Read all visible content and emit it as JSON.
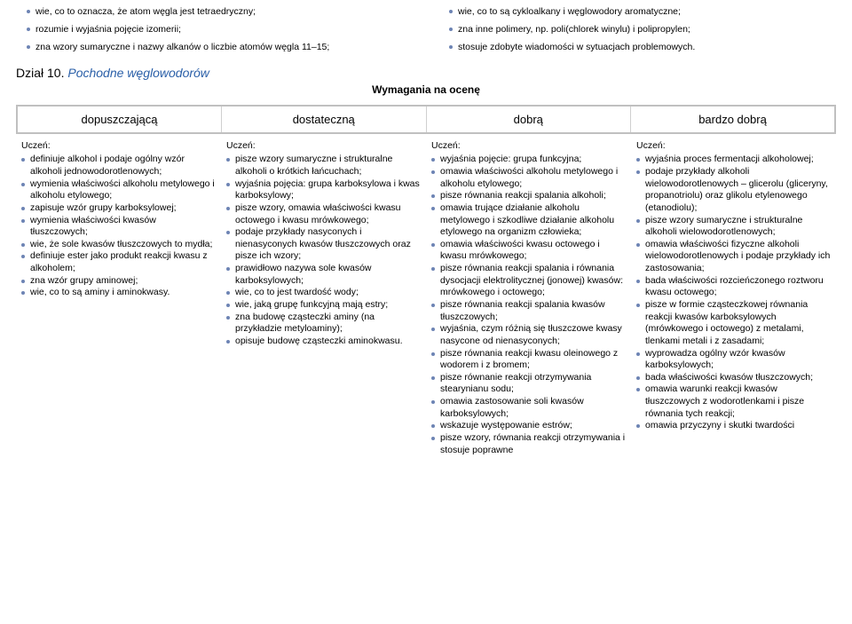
{
  "top_left": [
    "wie, co to oznacza, że atom węgla jest tetraedryczny;",
    "rozumie i wyjaśnia pojęcie izomerii;",
    "zna wzory sumaryczne i nazwy alkanów o liczbie atomów węgla 11–15;"
  ],
  "top_right": [
    "wie, co to są cykloalkany i węglowodory aromatyczne;",
    "zna inne polimery, np. poli(chlorek winylu) i polipropylen;",
    "stosuje zdobyte wiadomości w sytuacjach problemowych."
  ],
  "section_label_black": "Dział 10.",
  "section_label_blue": "Pochodne węglowodorów",
  "subtitle": "Wymagania na ocenę",
  "grade_headers": [
    "dopuszczającą",
    "dostateczną",
    "dobrą",
    "bardzo dobrą"
  ],
  "student_label": "Uczeń:",
  "col1": [
    "definiuje alkohol i podaje ogólny wzór alkoholi jednowodorotlenowych;",
    "wymienia właściwości alkoholu metylowego i alkoholu etylowego;",
    "zapisuje wzór grupy karboksylowej;",
    "wymienia właściwości kwasów tłuszczowych;",
    "wie, że sole kwasów tłuszczowych to mydła;",
    "definiuje ester jako produkt reakcji kwasu z alkoholem;",
    "zna wzór grupy aminowej;",
    "wie, co to są aminy i aminokwasy."
  ],
  "col2": [
    "pisze wzory sumaryczne i strukturalne alkoholi o krótkich łańcuchach;",
    "wyjaśnia pojęcia: grupa karboksylowa i kwas karboksylowy;",
    "pisze wzory, omawia właściwości kwasu octowego i kwasu mrówkowego;",
    "podaje przykłady nasyconych i nienasyconych kwasów tłuszczowych oraz pisze ich wzory;",
    "prawidłowo nazywa sole kwasów karboksylowych;",
    "wie, co to jest twardość wody;",
    "wie, jaką grupę funkcyjną mają estry;",
    "zna budowę cząsteczki aminy (na przykładzie metyloaminy);",
    "opisuje budowę cząsteczki aminokwasu."
  ],
  "col3": [
    "wyjaśnia pojęcie: grupa funkcyjna;",
    "omawia właściwości alkoholu metylowego i alkoholu etylowego;",
    "pisze równania reakcji spalania alkoholi;",
    "omawia trujące działanie alkoholu metylowego i szkodliwe działanie alkoholu etylowego na organizm człowieka;",
    "omawia właściwości kwasu octowego i kwasu mrówkowego;",
    "pisze równania reakcji spalania i równania dysocjacji elektrolitycznej (jonowej) kwasów: mrówkowego i octowego;",
    "pisze równania reakcji spalania kwasów tłuszczowych;",
    "wyjaśnia, czym różnią się tłuszczowe kwasy nasycone od nienasyconych;",
    "pisze równania reakcji kwasu oleinowego z wodorem i z bromem;",
    "pisze równanie reakcji otrzymywania stearynianu sodu;",
    "omawia zastosowanie soli kwasów karboksylowych;",
    "wskazuje występowanie estrów;",
    "pisze wzory, równania reakcji otrzymywania i stosuje poprawne"
  ],
  "col4": [
    "wyjaśnia proces fermentacji alkoholowej;",
    "podaje przykłady alkoholi wielowodorotlenowych – glicerolu (gliceryny, propanotriolu) oraz glikolu etylenowego (etanodiolu);",
    "pisze wzory sumaryczne i strukturalne alkoholi wielowodorotlenowych;",
    "omawia właściwości fizyczne alkoholi wielowodorotlenowych i podaje przykłady ich zastosowania;",
    "bada właściwości rozcieńczonego roztworu kwasu octowego;",
    "pisze w formie cząsteczkowej równania reakcji kwasów karboksylowych (mrówkowego i octowego) z metalami, tlenkami metali i z zasadami;",
    "wyprowadza ogólny wzór kwasów karboksylowych;",
    "bada właściwości kwasów tłuszczowych;",
    "omawia warunki reakcji kwasów tłuszczowych z wodorotlenkami i pisze równania tych reakcji;",
    "omawia przyczyny i skutki twardości"
  ]
}
